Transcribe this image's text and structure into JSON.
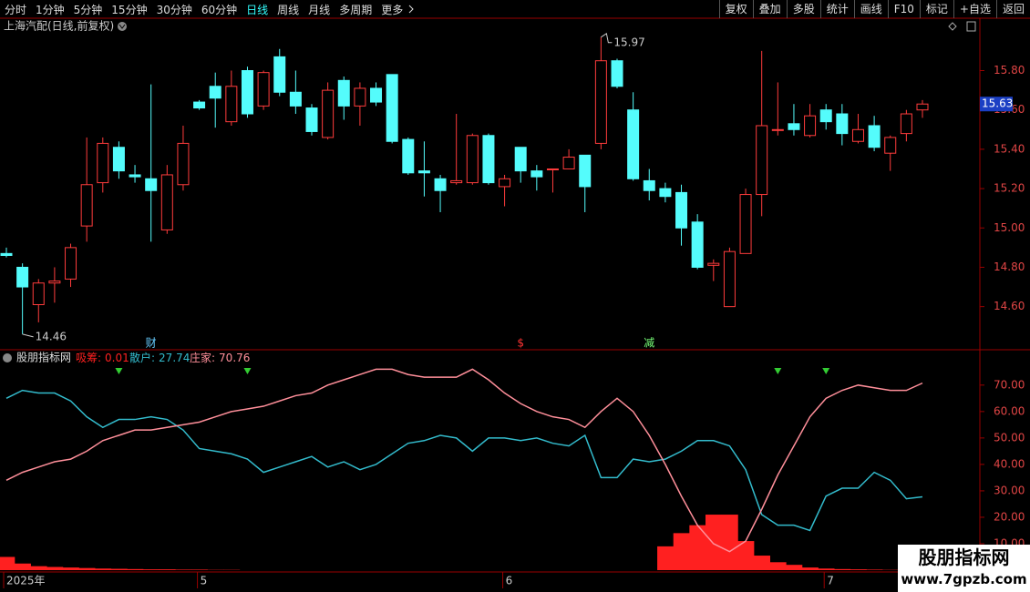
{
  "toolbar": {
    "left": [
      "分时",
      "1分钟",
      "5分钟",
      "15分钟",
      "30分钟",
      "60分钟",
      "日线",
      "周线",
      "月线",
      "多周期",
      "更多"
    ],
    "active_index": 6,
    "right": [
      "复权",
      "叠加",
      "多股",
      "统计",
      "画线",
      "F10",
      "标记",
      "+自选",
      "返回"
    ]
  },
  "chart_data": [
    {
      "type": "candlestick",
      "title": "上海汽配(日线,前复权)",
      "up_color": "#ff3c3c",
      "down_color": "#54fcfc",
      "ylim": [
        14.39,
        16.02
      ],
      "yticks": [
        {
          "value": 14.6,
          "label": "14.60"
        },
        {
          "value": 14.8,
          "label": "14.80"
        },
        {
          "value": 15.0,
          "label": "15.00"
        },
        {
          "value": 15.2,
          "label": "15.20"
        },
        {
          "value": 15.4,
          "label": "15.40"
        },
        {
          "value": 15.6,
          "label": "15.60"
        },
        {
          "value": 15.8,
          "label": "15.80"
        }
      ],
      "open": [
        14.87,
        14.8,
        14.61,
        14.72,
        14.74,
        15.01,
        15.23,
        15.41,
        15.27,
        15.25,
        14.99,
        15.22,
        15.64,
        15.72,
        15.54,
        15.8,
        15.62,
        15.87,
        15.69,
        15.61,
        15.46,
        15.75,
        15.62,
        15.71,
        15.78,
        15.45,
        15.29,
        15.25,
        15.23,
        15.23,
        15.47,
        15.21,
        15.41,
        15.29,
        15.3,
        15.3,
        15.37,
        15.43,
        15.85,
        15.6,
        15.24,
        15.2,
        15.18,
        15.03,
        14.81,
        14.6,
        14.87,
        15.17,
        15.5,
        15.53,
        15.47,
        15.6,
        15.58,
        15.44,
        15.52,
        15.38,
        15.48,
        15.6
      ],
      "high": [
        14.9,
        14.82,
        14.74,
        14.8,
        14.92,
        15.46,
        15.46,
        15.44,
        15.32,
        15.73,
        15.32,
        15.52,
        15.65,
        15.79,
        15.8,
        15.82,
        15.8,
        15.91,
        15.8,
        15.63,
        15.74,
        15.77,
        15.74,
        15.74,
        15.78,
        15.46,
        15.44,
        15.27,
        15.58,
        15.48,
        15.48,
        15.27,
        15.41,
        15.32,
        15.3,
        15.4,
        15.37,
        15.97,
        15.86,
        15.69,
        15.3,
        15.23,
        15.22,
        15.07,
        14.84,
        14.9,
        15.2,
        15.9,
        15.74,
        15.63,
        15.63,
        15.63,
        15.63,
        15.58,
        15.57,
        15.47,
        15.6,
        15.65
      ],
      "low": [
        14.85,
        14.46,
        14.52,
        14.62,
        14.7,
        14.93,
        15.18,
        15.25,
        15.23,
        14.93,
        14.97,
        15.19,
        15.6,
        15.51,
        15.52,
        15.56,
        15.6,
        15.67,
        15.58,
        15.47,
        15.45,
        15.55,
        15.52,
        15.62,
        15.43,
        15.27,
        15.16,
        15.08,
        15.22,
        15.22,
        15.22,
        15.11,
        15.23,
        15.19,
        15.18,
        15.3,
        15.08,
        15.4,
        15.71,
        15.24,
        15.14,
        15.13,
        14.91,
        14.79,
        14.73,
        14.6,
        14.87,
        15.06,
        15.47,
        15.47,
        15.46,
        15.5,
        15.42,
        15.43,
        15.39,
        15.29,
        15.44,
        15.56
      ],
      "close": [
        14.86,
        14.7,
        14.72,
        14.73,
        14.9,
        15.22,
        15.43,
        15.29,
        15.26,
        15.19,
        15.27,
        15.43,
        15.61,
        15.66,
        15.72,
        15.58,
        15.79,
        15.69,
        15.62,
        15.49,
        15.7,
        15.62,
        15.71,
        15.64,
        15.44,
        15.28,
        15.28,
        15.19,
        15.24,
        15.47,
        15.23,
        15.25,
        15.29,
        15.26,
        15.3,
        15.36,
        15.21,
        15.85,
        15.72,
        15.25,
        15.19,
        15.16,
        15.0,
        14.8,
        14.82,
        14.88,
        15.17,
        15.52,
        15.5,
        15.5,
        15.57,
        15.54,
        15.48,
        15.5,
        15.41,
        15.46,
        15.58,
        15.63
      ],
      "events": [
        {
          "index": 9,
          "label": "财",
          "color": "#66ccff"
        },
        {
          "index": 32,
          "label": "$",
          "color": "#ff3333"
        },
        {
          "index": 40,
          "label": "减",
          "color": "#77ff77"
        }
      ]
    },
    {
      "type": "indicator",
      "title": "股朋指标网",
      "categories": [
        "2025年",
        null,
        null,
        null,
        null,
        null,
        null,
        null,
        null,
        null,
        null,
        null,
        "5",
        null,
        null,
        null,
        null,
        null,
        null,
        null,
        null,
        null,
        null,
        null,
        null,
        null,
        null,
        null,
        null,
        null,
        null,
        "6",
        null,
        null,
        null,
        null,
        null,
        null,
        null,
        null,
        null,
        null,
        null,
        null,
        null,
        null,
        null,
        null,
        null,
        null,
        null,
        "7",
        null,
        null,
        null,
        null,
        null,
        null
      ],
      "ylim": [
        0,
        82
      ],
      "yticks": [
        {
          "value": 10,
          "label": "10.00"
        },
        {
          "value": 20,
          "label": "20.00"
        },
        {
          "value": 30,
          "label": "30.00"
        },
        {
          "value": 40,
          "label": "40.00"
        },
        {
          "value": 50,
          "label": "50.00"
        },
        {
          "value": 60,
          "label": "60.00"
        },
        {
          "value": 70,
          "label": "70.00"
        }
      ],
      "signal_indices": [
        7,
        15,
        48,
        51
      ],
      "signal_color": "#33cc33",
      "series": [
        {
          "name": "吸筹:",
          "type": "bar",
          "color": "#ff2020",
          "values": [
            5,
            2.5,
            1.5,
            1.2,
            1,
            0.8,
            0.6,
            0.5,
            0.4,
            0.3,
            0.3,
            0.2,
            0.2,
            0.1,
            0.1,
            0,
            0,
            0,
            0,
            0,
            0,
            0,
            0,
            0,
            0,
            0,
            0,
            0,
            0,
            0,
            0,
            0,
            0,
            0,
            0,
            0,
            0,
            0,
            0,
            0,
            0,
            9,
            14,
            17,
            21,
            21,
            11,
            5.5,
            3,
            2,
            1,
            0.6,
            0.4,
            0.3,
            0.2,
            0.1,
            0.05,
            0.01
          ]
        },
        {
          "name": "散户:",
          "type": "line",
          "color": "#33bbcc",
          "values": [
            65,
            68,
            67,
            67,
            64,
            58,
            54,
            57,
            57,
            58,
            57,
            53,
            46,
            45,
            44,
            42,
            37,
            39,
            41,
            43,
            39,
            41,
            38,
            40,
            44,
            48,
            49,
            51,
            50,
            45,
            50,
            50,
            49,
            50,
            48,
            47,
            51,
            35,
            35,
            42,
            41,
            42,
            45,
            49,
            49,
            47,
            38,
            21,
            17,
            17,
            15,
            28,
            31,
            31,
            37,
            34,
            27,
            27.74
          ]
        },
        {
          "name": "庄家:",
          "type": "line",
          "color": "#ff8f9a",
          "values": [
            34,
            37,
            39,
            41,
            42,
            45,
            49,
            51,
            53,
            53,
            54,
            55,
            56,
            58,
            60,
            61,
            62,
            64,
            66,
            67,
            70,
            72,
            74,
            76,
            76,
            74,
            73,
            73,
            73,
            76,
            72,
            67,
            63,
            60,
            58,
            57,
            54,
            60,
            65,
            60,
            51,
            40,
            28,
            17,
            10,
            7,
            11,
            23,
            36,
            47,
            58,
            65,
            68,
            70,
            69,
            68,
            68,
            70.76
          ]
        }
      ]
    }
  ],
  "watermark": {
    "title": "股朋指标网",
    "url": "www.7gpzb.com"
  }
}
